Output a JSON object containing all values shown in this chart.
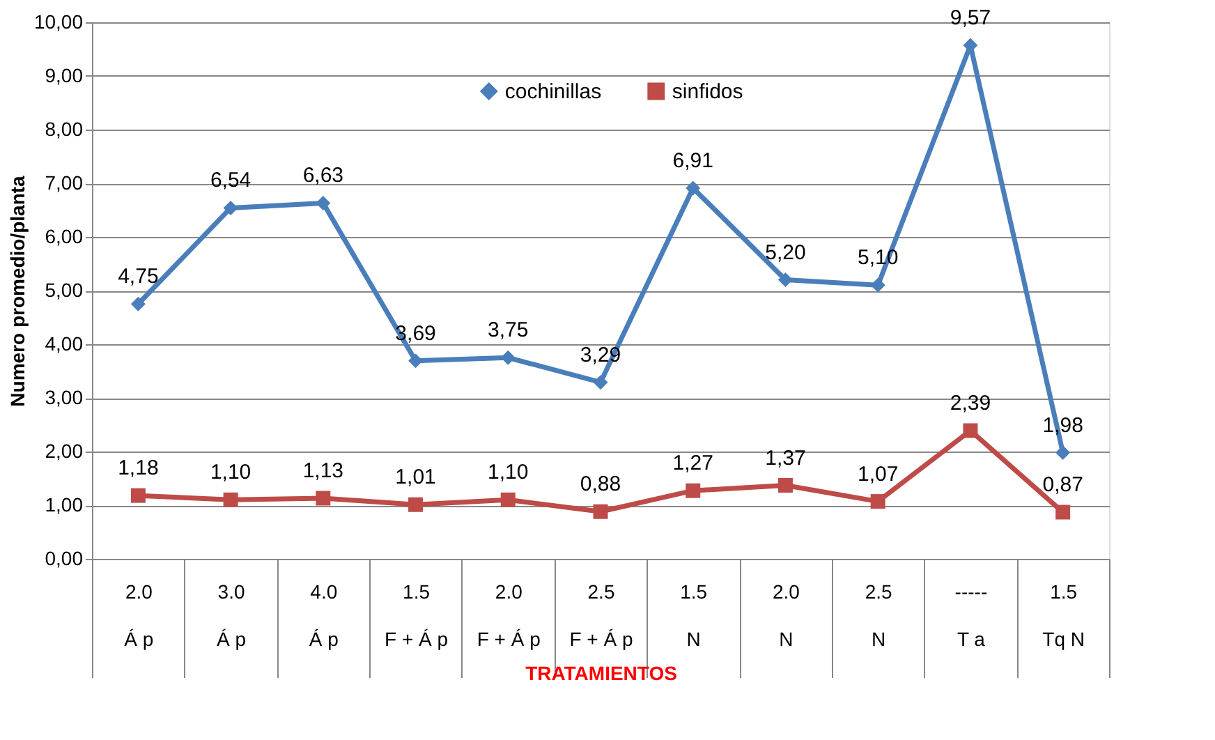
{
  "chart_data": {
    "type": "line",
    "xlabel": "TRATAMIENTOS",
    "ylabel": "Numero promedio/planta",
    "categories": [
      "2.0\nÁ p",
      "3.0\nÁ p",
      "4.0\nÁ p",
      "1.5\nF + Á p",
      "2.0\nF + Á p",
      "2.5\nF + Á p",
      "1.5\nN",
      "2.0\nN",
      "2.5\nN",
      "-----\nT a",
      "1.5\nTq N"
    ],
    "series": [
      {
        "name": "cochinillas",
        "color": "#4a7ebb",
        "marker": "diamond",
        "values": [
          4.75,
          6.54,
          6.63,
          3.69,
          3.75,
          3.29,
          6.91,
          5.2,
          5.1,
          9.57,
          1.98
        ],
        "value_labels": [
          "4,75",
          "6,54",
          "6,63",
          "3,69",
          "3,75",
          "3,29",
          "6,91",
          "5,20",
          "5,10",
          "9,57",
          "1,98"
        ]
      },
      {
        "name": "sinfidos",
        "color": "#be4b48",
        "marker": "square",
        "values": [
          1.18,
          1.1,
          1.13,
          1.01,
          1.1,
          0.88,
          1.27,
          1.37,
          1.07,
          2.39,
          0.87
        ],
        "value_labels": [
          "1,18",
          "1,10",
          "1,13",
          "1,01",
          "1,10",
          "0,88",
          "1,27",
          "1,37",
          "1,07",
          "2,39",
          "0,87"
        ]
      }
    ],
    "ylim": [
      0,
      10
    ],
    "yticks": [
      {
        "value": 0,
        "label": "0,00"
      },
      {
        "value": 1,
        "label": "1,00"
      },
      {
        "value": 2,
        "label": "2,00"
      },
      {
        "value": 3,
        "label": "3,00"
      },
      {
        "value": 4,
        "label": "4,00"
      },
      {
        "value": 5,
        "label": "5,00"
      },
      {
        "value": 6,
        "label": "6,00"
      },
      {
        "value": 7,
        "label": "7,00"
      },
      {
        "value": 8,
        "label": "8,00"
      },
      {
        "value": 9,
        "label": "9,00"
      },
      {
        "value": 10,
        "label": "10,00"
      }
    ],
    "grid": "y",
    "legend": "top",
    "line_style": "solid"
  }
}
